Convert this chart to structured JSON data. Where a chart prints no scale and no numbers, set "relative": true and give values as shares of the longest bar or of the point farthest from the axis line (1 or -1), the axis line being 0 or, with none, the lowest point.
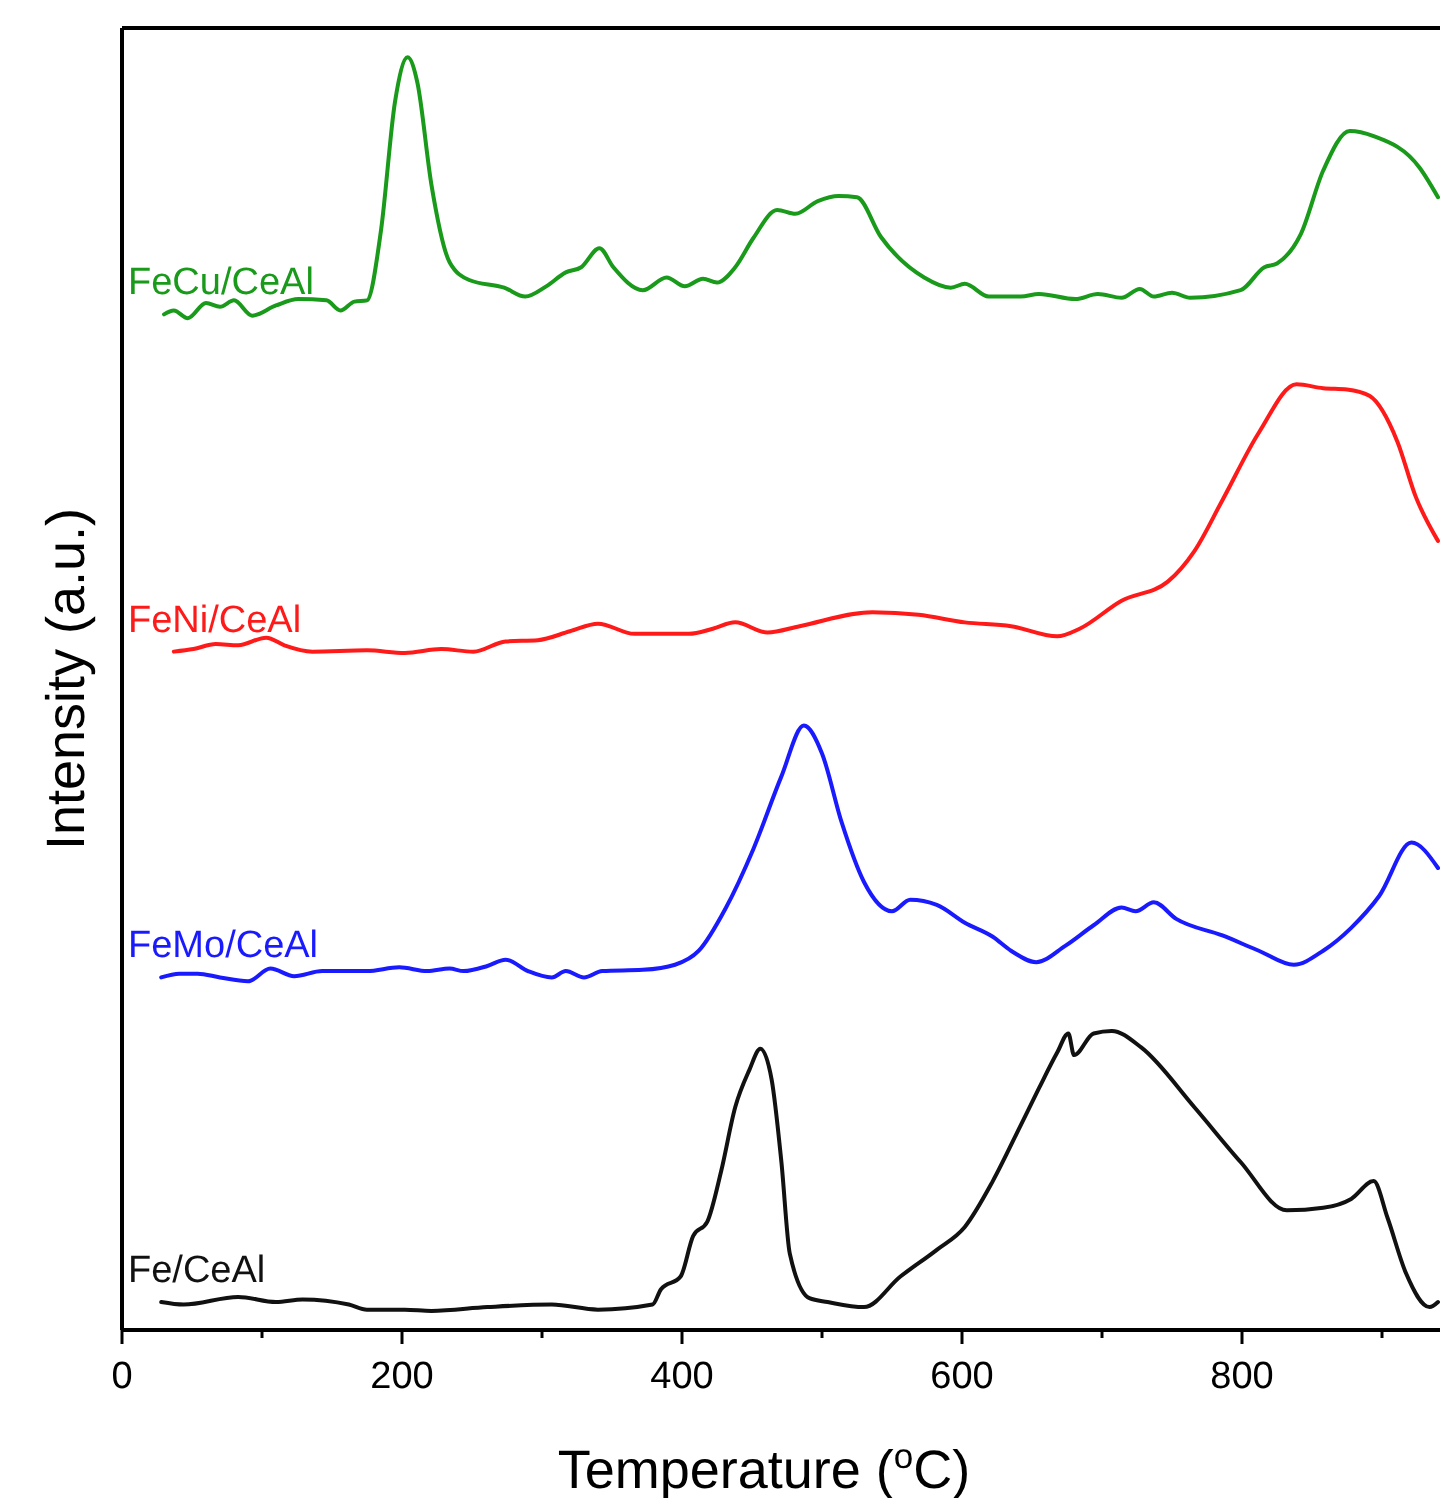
{
  "chart_data": {
    "type": "line",
    "relative": true,
    "xlabel": "Temperature ($^{o}$C)",
    "ylabel": "Intensity (a.u.)",
    "xlim": [
      0,
      940
    ],
    "xticks": [
      0,
      {
        "value": 100,
        "label": null
      },
      200,
      {
        "value": 300,
        "label": null
      },
      400,
      {
        "value": 500,
        "label": null
      },
      600,
      {
        "value": 700,
        "label": null
      },
      800,
      {
        "value": 900,
        "label": null
      }
    ],
    "legend": false,
    "grid": false,
    "marker": "none",
    "line_style": "solid",
    "series": [
      {
        "name": "FeCu/CeAl",
        "color": "#1a9a1a",
        "x": [
          30,
          37,
          47,
          60,
          70,
          80,
          93,
          110,
          126,
          146,
          156,
          166,
          175,
          185,
          195,
          204,
          211,
          221,
          234,
          248,
          273,
          288,
          303,
          317,
          328,
          341,
          351,
          372,
          389,
          402,
          415,
          425,
          438,
          451,
          468,
          481,
          497,
          512,
          525,
          542,
          573,
          592,
          602,
          619,
          642,
          655,
          681,
          697,
          714,
          727,
          737,
          750,
          763,
          799,
          816,
          825,
          842,
          858,
          877,
          894,
          927,
          940
        ],
        "values": [
          0.798,
          0.801,
          0.795,
          0.807,
          0.804,
          0.809,
          0.797,
          0.805,
          0.81,
          0.809,
          0.801,
          0.808,
          0.809,
          0.864,
          0.965,
          1,
          0.98,
          0.9,
          0.839,
          0.825,
          0.819,
          0.812,
          0.82,
          0.831,
          0.835,
          0.85,
          0.835,
          0.817,
          0.827,
          0.82,
          0.826,
          0.823,
          0.835,
          0.858,
          0.88,
          0.877,
          0.887,
          0.891,
          0.89,
          0.859,
          0.827,
          0.819,
          0.822,
          0.812,
          0.812,
          0.814,
          0.81,
          0.814,
          0.811,
          0.818,
          0.812,
          0.815,
          0.811,
          0.817,
          0.835,
          0.838,
          0.861,
          0.911,
          0.942,
          0.938,
          0.913,
          0.89
        ]
      },
      {
        "name": "FeNi/CeAl",
        "color": "#ff1a1a",
        "x": [
          37,
          51,
          67,
          83,
          103,
          116,
          136,
          175,
          202,
          228,
          251,
          274,
          297,
          320,
          340,
          366,
          405,
          422,
          438,
          461,
          484,
          536,
          569,
          602,
          635,
          668,
          684,
          714,
          747,
          766,
          786,
          812,
          839,
          858,
          875,
          891,
          911,
          924,
          940
        ],
        "values": [
          0.533,
          0.535,
          0.539,
          0.538,
          0.544,
          0.538,
          0.533,
          0.534,
          0.532,
          0.535,
          0.533,
          0.541,
          0.542,
          0.549,
          0.555,
          0.547,
          0.547,
          0.551,
          0.556,
          0.548,
          0.553,
          0.564,
          0.562,
          0.556,
          0.553,
          0.545,
          0.551,
          0.573,
          0.588,
          0.612,
          0.652,
          0.705,
          0.743,
          0.74,
          0.739,
          0.734,
          0.698,
          0.655,
          0.62
        ]
      },
      {
        "name": "FeMo/CeAl",
        "color": "#1a1aff",
        "x": [
          28,
          41,
          54,
          70,
          90,
          106,
          123,
          143,
          175,
          198,
          218,
          234,
          244,
          261,
          274,
          290,
          307,
          317,
          330,
          343,
          372,
          395,
          412,
          431,
          451,
          471,
          487,
          500,
          514,
          530,
          550,
          563,
          582,
          602,
          622,
          635,
          653,
          674,
          694,
          714,
          724,
          737,
          753,
          786,
          812,
          837,
          858,
          878,
          898,
          921,
          940
        ],
        "values": [
          0.277,
          0.28,
          0.28,
          0.277,
          0.274,
          0.284,
          0.278,
          0.282,
          0.282,
          0.285,
          0.282,
          0.284,
          0.282,
          0.286,
          0.291,
          0.282,
          0.277,
          0.282,
          0.277,
          0.282,
          0.283,
          0.287,
          0.298,
          0.331,
          0.378,
          0.435,
          0.475,
          0.453,
          0.399,
          0.352,
          0.329,
          0.338,
          0.334,
          0.32,
          0.309,
          0.298,
          0.289,
          0.302,
          0.318,
          0.332,
          0.329,
          0.336,
          0.323,
          0.31,
          0.298,
          0.287,
          0.298,
          0.316,
          0.341,
          0.383,
          0.363
        ]
      },
      {
        "name": "Fe/CeAl",
        "color": "#111111",
        "x": [
          28,
          44,
          83,
          110,
          129,
          162,
          175,
          202,
          221,
          261,
          307,
          340,
          379,
          385,
          399,
          408,
          418,
          428,
          438,
          448,
          456,
          464,
          471,
          477,
          491,
          504,
          530,
          556,
          582,
          602,
          622,
          642,
          655,
          668,
          676,
          680,
          694,
          707,
          728,
          766,
          799,
          832,
          858,
          878,
          894,
          904,
          917,
          934,
          940
        ],
        "values": [
          0.022,
          0.02,
          0.026,
          0.022,
          0.024,
          0.02,
          0.016,
          0.016,
          0.015,
          0.018,
          0.02,
          0.016,
          0.02,
          0.032,
          0.042,
          0.074,
          0.085,
          0.125,
          0.175,
          0.204,
          0.221,
          0.197,
          0.132,
          0.06,
          0.025,
          0.022,
          0.018,
          0.042,
          0.063,
          0.081,
          0.117,
          0.161,
          0.19,
          0.218,
          0.233,
          0.216,
          0.233,
          0.235,
          0.222,
          0.175,
          0.132,
          0.094,
          0.096,
          0.103,
          0.117,
          0.088,
          0.045,
          0.018,
          0.022
        ]
      }
    ]
  }
}
